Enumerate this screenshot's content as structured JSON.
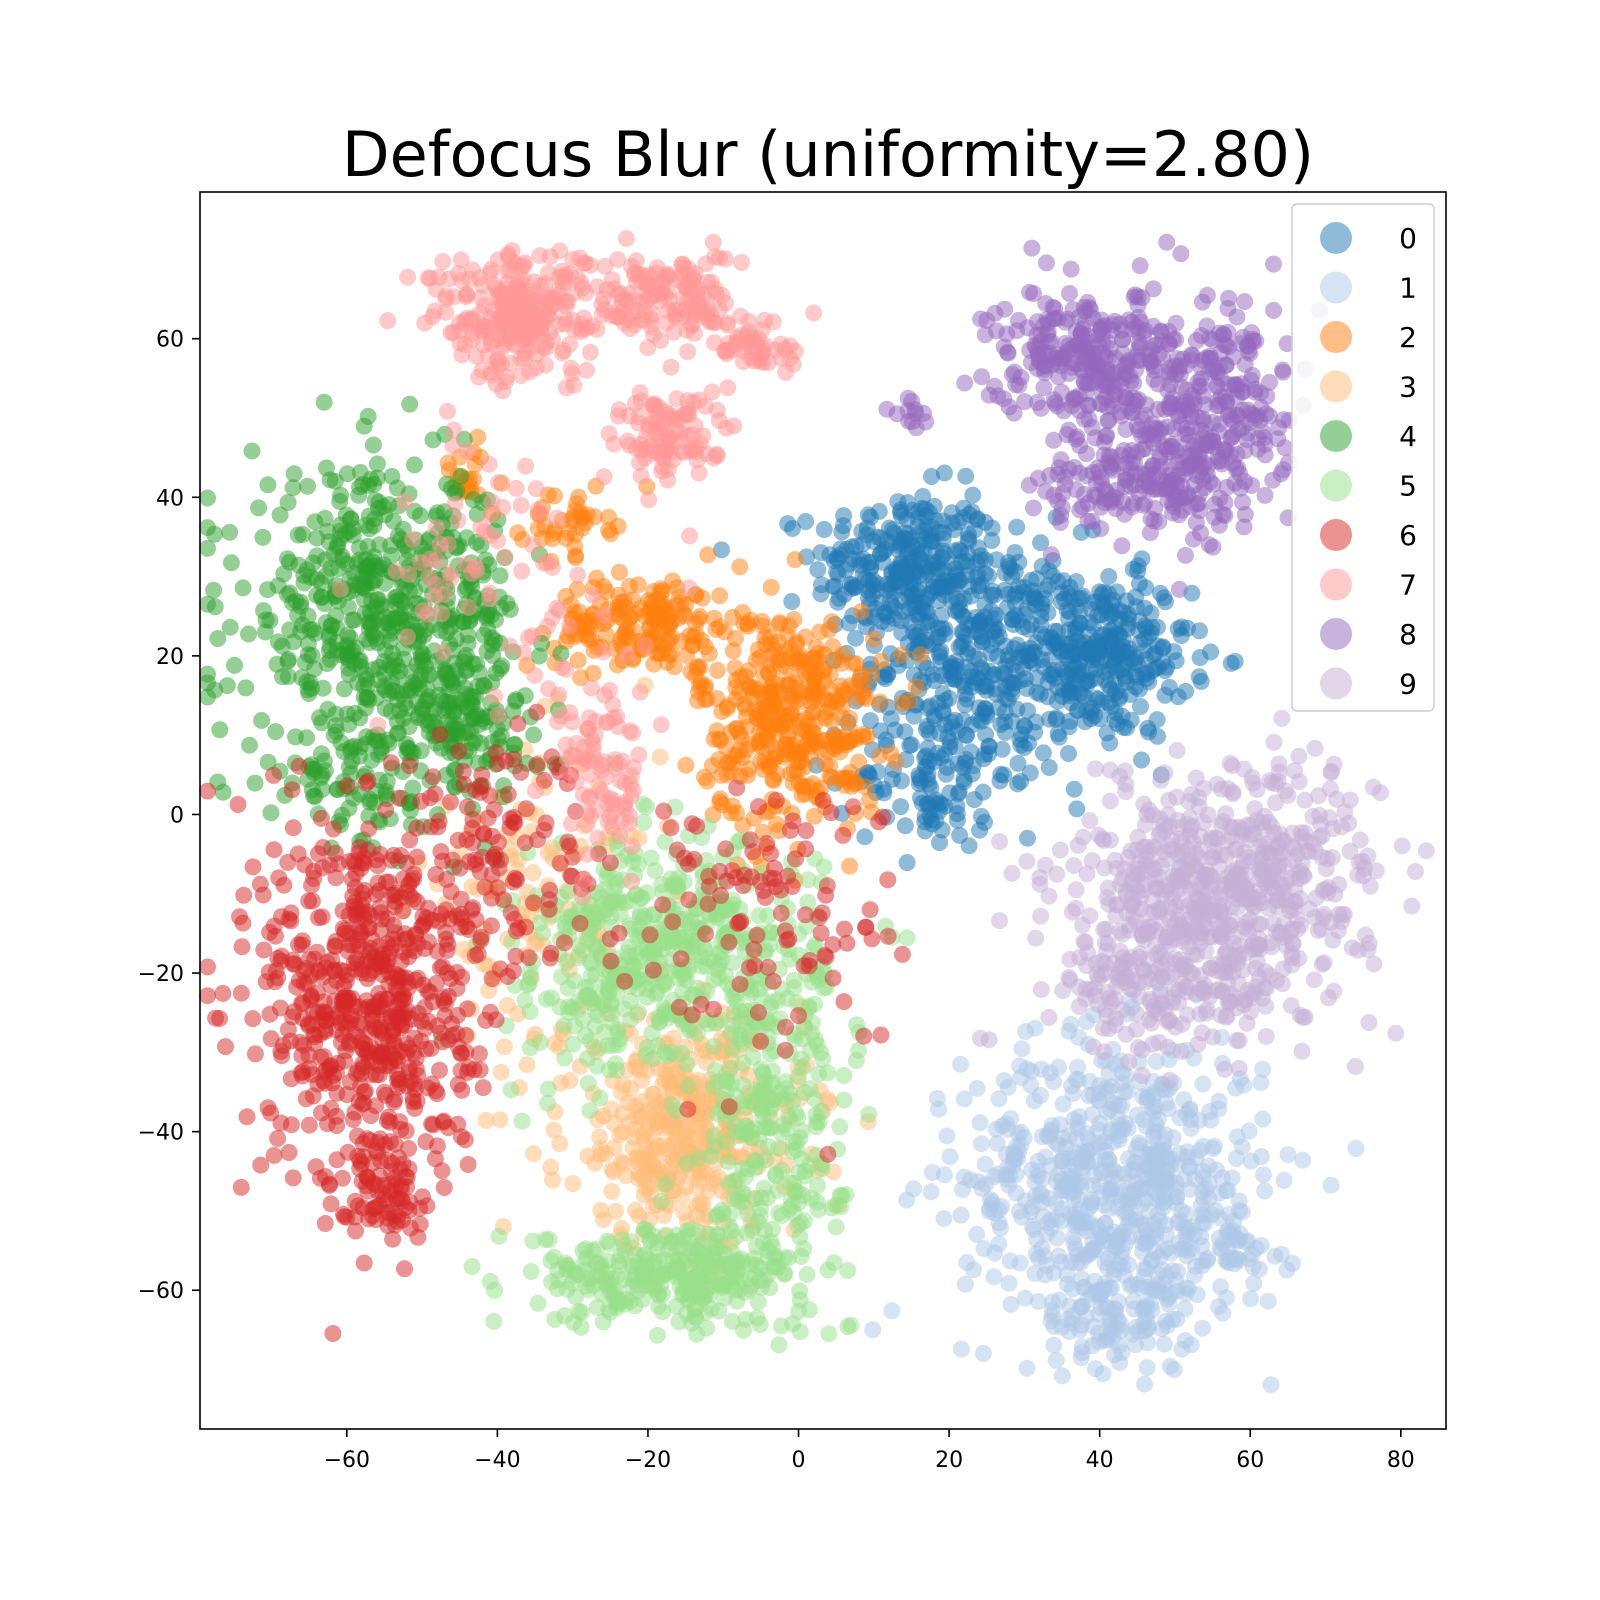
{
  "chart_data": {
    "type": "scatter",
    "title": "Defocus Blur (uniformity=2.80)",
    "xlabel": "",
    "ylabel": "",
    "xlim": [
      -79.5,
      86
    ],
    "ylim": [
      -77.5,
      78.5
    ],
    "xticks": [
      -60,
      -40,
      -20,
      0,
      20,
      40,
      60,
      80
    ],
    "yticks": [
      -60,
      -40,
      -20,
      0,
      20,
      40,
      60
    ],
    "xtick_labels": [
      "−60",
      "−40",
      "−20",
      "0",
      "20",
      "40",
      "60",
      "80"
    ],
    "ytick_labels": [
      "−60",
      "−40",
      "−20",
      "0",
      "20",
      "40",
      "60"
    ],
    "grid": false,
    "legend_position": "top-right",
    "point_alpha": 0.5,
    "series": [
      {
        "name": "0",
        "color": "#1f77b4",
        "clusters": [
          {
            "x": 14,
            "y": 31,
            "sx": 6,
            "sy": 5,
            "n": 260
          },
          {
            "x": 24,
            "y": 20,
            "sx": 7,
            "sy": 8,
            "n": 320
          },
          {
            "x": 40,
            "y": 20,
            "sx": 6,
            "sy": 5,
            "n": 300
          },
          {
            "x": 18,
            "y": 5,
            "sx": 5,
            "sy": 5,
            "n": 100
          }
        ]
      },
      {
        "name": "1",
        "color": "#aec7e8",
        "clusters": [
          {
            "x": 42,
            "y": -46,
            "sx": 10,
            "sy": 9,
            "n": 620
          },
          {
            "x": 43,
            "y": -62,
            "sx": 5,
            "sy": 4,
            "n": 110
          },
          {
            "x": 58,
            "y": -54,
            "sx": 3,
            "sy": 3,
            "n": 40
          }
        ]
      },
      {
        "name": "2",
        "color": "#ff7f0e",
        "clusters": [
          {
            "x": -1,
            "y": 12,
            "sx": 6,
            "sy": 7,
            "n": 380
          },
          {
            "x": -20,
            "y": 24,
            "sx": 6,
            "sy": 3,
            "n": 170
          },
          {
            "x": -31,
            "y": 37,
            "sx": 3,
            "sy": 2,
            "n": 40
          },
          {
            "x": -44,
            "y": 42,
            "sx": 2,
            "sy": 2,
            "n": 20
          }
        ]
      },
      {
        "name": "3",
        "color": "#ffbb78",
        "clusters": [
          {
            "x": -15,
            "y": -40,
            "sx": 8,
            "sy": 7,
            "n": 380
          },
          {
            "x": -35,
            "y": -12,
            "sx": 8,
            "sy": 10,
            "n": 120
          }
        ]
      },
      {
        "name": "4",
        "color": "#2ca02c",
        "clusters": [
          {
            "x": -55,
            "y": 25,
            "sx": 9,
            "sy": 9,
            "n": 560
          },
          {
            "x": -45,
            "y": 12,
            "sx": 5,
            "sy": 5,
            "n": 140
          },
          {
            "x": -60,
            "y": 3,
            "sx": 5,
            "sy": 4,
            "n": 60
          }
        ]
      },
      {
        "name": "5",
        "color": "#98df8a",
        "clusters": [
          {
            "x": -15,
            "y": -18,
            "sx": 9,
            "sy": 7,
            "n": 420
          },
          {
            "x": -17,
            "y": -58,
            "sx": 9,
            "sy": 3,
            "n": 300
          },
          {
            "x": -3,
            "y": -40,
            "sx": 5,
            "sy": 9,
            "n": 220
          },
          {
            "x": -28,
            "y": -20,
            "sx": 5,
            "sy": 8,
            "n": 90
          }
        ]
      },
      {
        "name": "6",
        "color": "#d62728",
        "clusters": [
          {
            "x": -57,
            "y": -23,
            "sx": 7,
            "sy": 12,
            "n": 620
          },
          {
            "x": -55,
            "y": -47,
            "sx": 3,
            "sy": 3,
            "n": 70
          },
          {
            "x": -40,
            "y": -5,
            "sx": 7,
            "sy": 8,
            "n": 110
          },
          {
            "x": -5,
            "y": -12,
            "sx": 9,
            "sy": 9,
            "n": 110
          }
        ]
      },
      {
        "name": "7",
        "color": "#ff9896",
        "clusters": [
          {
            "x": -37,
            "y": 63,
            "sx": 6,
            "sy": 4,
            "n": 260
          },
          {
            "x": -17,
            "y": 65,
            "sx": 4,
            "sy": 3,
            "n": 130
          },
          {
            "x": -5,
            "y": 59,
            "sx": 3,
            "sy": 2,
            "n": 50
          },
          {
            "x": -17,
            "y": 48,
            "sx": 4,
            "sy": 3,
            "n": 100
          },
          {
            "x": -26,
            "y": 5,
            "sx": 3,
            "sy": 6,
            "n": 90
          },
          {
            "x": -40,
            "y": 30,
            "sx": 8,
            "sy": 10,
            "n": 80
          }
        ]
      },
      {
        "name": "8",
        "color": "#9467bd",
        "clusters": [
          {
            "x": 38,
            "y": 58,
            "sx": 6,
            "sy": 4,
            "n": 260
          },
          {
            "x": 55,
            "y": 50,
            "sx": 5,
            "sy": 7,
            "n": 260
          },
          {
            "x": 45,
            "y": 43,
            "sx": 6,
            "sy": 4,
            "n": 180
          },
          {
            "x": 15,
            "y": 51,
            "sx": 1,
            "sy": 1.5,
            "n": 12
          }
        ]
      },
      {
        "name": "9",
        "color": "#c5b0d5",
        "clusters": [
          {
            "x": 55,
            "y": -10,
            "sx": 10,
            "sy": 7,
            "n": 520
          },
          {
            "x": 50,
            "y": -22,
            "sx": 8,
            "sy": 4,
            "n": 160
          },
          {
            "x": 65,
            "y": -5,
            "sx": 6,
            "sy": 6,
            "n": 100
          }
        ]
      }
    ]
  }
}
